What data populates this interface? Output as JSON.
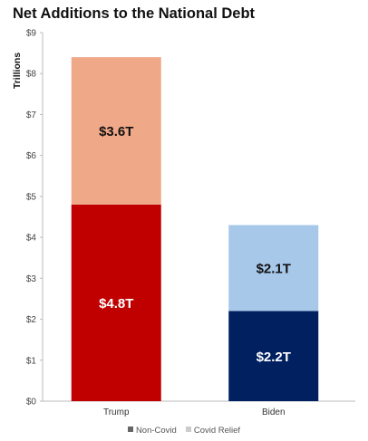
{
  "chart_data": {
    "type": "bar",
    "stacked": true,
    "title": "Net Additions to the National Debt",
    "xlabel": "",
    "ylabel": "Trillions",
    "ylim": [
      0,
      9
    ],
    "yticks": [
      "$0",
      "$1",
      "$2",
      "$3",
      "$4",
      "$5",
      "$6",
      "$7",
      "$8",
      "$9"
    ],
    "categories": [
      "Trump",
      "Biden"
    ],
    "series": [
      {
        "name": "Non-Covid",
        "values": [
          4.8,
          2.2
        ],
        "labels": [
          "$4.8T",
          "$2.2T"
        ],
        "colors": [
          "#c00000",
          "#002060"
        ],
        "label_colors": [
          "#ffffff",
          "#ffffff"
        ]
      },
      {
        "name": "Covid Relief",
        "values": [
          3.6,
          2.1
        ],
        "labels": [
          "$3.6T",
          "$2.1T"
        ],
        "colors": [
          "#f0a988",
          "#a8c8ea"
        ],
        "label_colors": [
          "#111111",
          "#111111"
        ]
      }
    ],
    "grid": false,
    "legend": {
      "position": "bottom",
      "entries": [
        {
          "label": "Non-Covid",
          "color": "#666666"
        },
        {
          "label": "Covid Relief",
          "color": "#cccccc"
        }
      ]
    }
  }
}
